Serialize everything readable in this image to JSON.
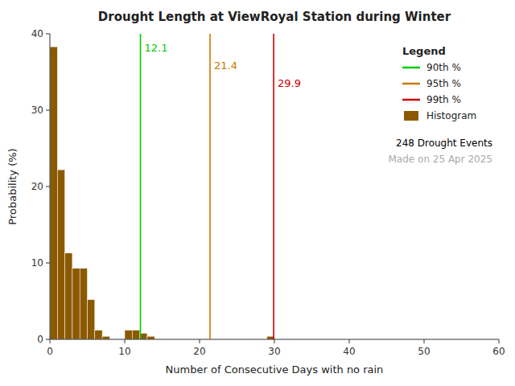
{
  "chart_data": {
    "type": "histogram",
    "title": "Drought Length at ViewRoyal Station during Winter",
    "x_label": "Number of Consecutive Days with no rain",
    "y_label": "Probability (%)",
    "bins": [
      0,
      1,
      2,
      3,
      4,
      5,
      6,
      7,
      8,
      9,
      10,
      11,
      12,
      13,
      14,
      15,
      16,
      17,
      18,
      19,
      20,
      21,
      22,
      23,
      24,
      25,
      26,
      27,
      28,
      29,
      30,
      31,
      32,
      33,
      34,
      35,
      36,
      37,
      38,
      39,
      40,
      41,
      42,
      43,
      44,
      45,
      46,
      47,
      48,
      49,
      50,
      51,
      52,
      53,
      54,
      55,
      56,
      57,
      58,
      59,
      60
    ],
    "series": [
      {
        "name": "Histogram",
        "color": "#8B5A00",
        "values": [
          38.3,
          22.2,
          11.3,
          9.3,
          9.3,
          5.2,
          1.2,
          0.4,
          0.0,
          0.0,
          1.2,
          1.2,
          0.8,
          0.4,
          0.0,
          0.0,
          0.0,
          0.0,
          0.0,
          0.0,
          0.0,
          0.0,
          0.0,
          0.0,
          0.0,
          0.0,
          0.0,
          0.0,
          0.0,
          0.4,
          0.0,
          0.0,
          0.0,
          0.0,
          0.0,
          0.0,
          0.0,
          0.0,
          0.0,
          0.0,
          0.0,
          0.0,
          0.0,
          0.0,
          0.0,
          0.0,
          0.0,
          0.0,
          0.0,
          0.0,
          0.0,
          0.0,
          0.0,
          0.0,
          0.0,
          0.0,
          0.0,
          0.0,
          0.0,
          0.0
        ]
      }
    ],
    "percentiles": [
      {
        "name": "90th %",
        "value": 12.1,
        "color": "#00CC00"
      },
      {
        "name": "95th %",
        "value": 21.4,
        "color": "#CC7700"
      },
      {
        "name": "99th %",
        "value": 29.9,
        "color": "#CC0000"
      }
    ],
    "annotations": [
      {
        "text": "248 Drought Events",
        "color": "#000000"
      },
      {
        "text": "Made on 25 Apr 2025",
        "color": "#AAAAAA"
      }
    ],
    "xlim": [
      0,
      60
    ],
    "ylim": [
      0,
      40
    ],
    "xticks": [
      0,
      10,
      20,
      30,
      40,
      50,
      60
    ],
    "yticks": [
      0,
      10,
      20,
      30,
      40
    ],
    "grid": false,
    "legend": "upper-right",
    "legend_title": "Legend"
  }
}
